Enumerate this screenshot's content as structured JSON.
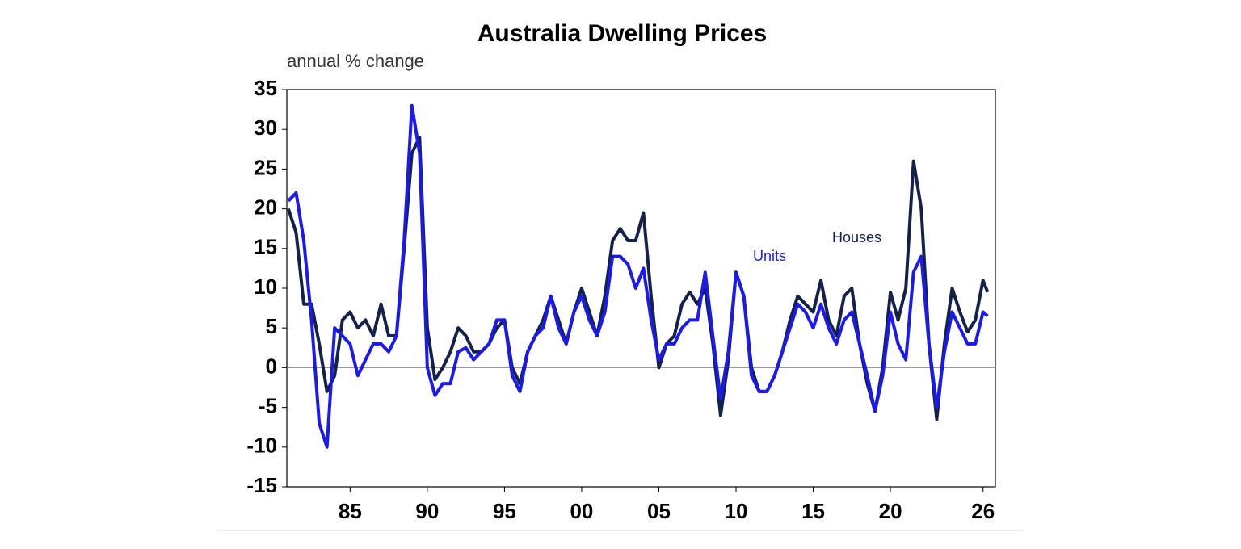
{
  "chart_data": {
    "type": "line",
    "title": "Australia Dwelling Prices",
    "y_label": "annual % change",
    "x": [
      1981,
      1981.5,
      1982,
      1982.5,
      1983,
      1983.5,
      1984,
      1984.5,
      1985,
      1985.5,
      1986,
      1986.5,
      1987,
      1987.5,
      1988,
      1988.5,
      1989,
      1989.5,
      1990,
      1990.5,
      1991,
      1991.5,
      1992,
      1992.5,
      1993,
      1993.5,
      1994,
      1994.5,
      1995,
      1995.5,
      1996,
      1996.5,
      1997,
      1997.5,
      1998,
      1998.5,
      1999,
      1999.5,
      2000,
      2000.5,
      2001,
      2001.5,
      2002,
      2002.5,
      2003,
      2003.5,
      2004,
      2004.5,
      2005,
      2005.5,
      2006,
      2006.5,
      2007,
      2007.5,
      2008,
      2008.5,
      2009,
      2009.5,
      2010,
      2010.5,
      2011,
      2011.5,
      2012,
      2012.5,
      2013,
      2013.5,
      2014,
      2014.5,
      2015,
      2015.5,
      2016,
      2016.5,
      2017,
      2017.5,
      2018,
      2018.5,
      2019,
      2019.5,
      2020,
      2020.5,
      2021,
      2021.5,
      2022,
      2022.5,
      2023,
      2023.5,
      2024,
      2024.5,
      2025,
      2025.5,
      2026,
      2026.3
    ],
    "series": [
      {
        "name": "Houses",
        "color": "#14214a",
        "values": [
          20,
          17,
          8,
          8,
          3,
          -3,
          -1,
          6,
          7,
          5,
          6,
          4,
          8,
          4,
          4,
          15,
          27,
          29,
          5,
          -1.5,
          0,
          2,
          5,
          4,
          2,
          2,
          3,
          5,
          6,
          0,
          -2,
          2,
          4,
          6,
          9,
          6,
          3,
          7,
          10,
          7,
          4,
          9,
          16,
          17.5,
          16,
          16,
          19.5,
          9,
          0,
          3,
          4,
          8,
          9.5,
          8,
          10,
          3,
          -6,
          1,
          12,
          9,
          0,
          -3,
          -3,
          -1,
          2,
          6,
          9,
          8,
          7,
          11,
          6,
          4,
          9,
          10,
          3,
          -2,
          -5.5,
          0,
          9.5,
          6,
          10,
          26,
          20,
          3,
          -6.5,
          3,
          10,
          7,
          4.5,
          6,
          11,
          9.5
        ]
      },
      {
        "name": "Units",
        "color": "#1a1aee",
        "values": [
          21,
          22,
          16,
          6,
          -7,
          -10,
          5,
          4,
          3,
          -1,
          1,
          3,
          3,
          2,
          4,
          16,
          33,
          27,
          0,
          -3.5,
          -2,
          -2,
          2,
          2.5,
          1,
          2,
          3,
          6,
          6,
          -1,
          -3,
          2,
          4,
          5,
          9,
          5,
          3,
          7,
          9,
          6,
          4,
          7,
          14,
          14,
          13,
          10,
          12.5,
          6,
          1,
          3,
          3,
          5,
          6,
          6,
          12,
          4,
          -4,
          2,
          12,
          9,
          -1,
          -3,
          -3,
          -1,
          2,
          5,
          8,
          7,
          5,
          8,
          5,
          3,
          6,
          7,
          3,
          -1,
          -5.5,
          -1,
          7,
          3,
          1,
          12,
          14,
          3,
          -5,
          2,
          7,
          5,
          3,
          3,
          7,
          6.5
        ]
      }
    ],
    "xlim": [
      1980.9,
      2026.8
    ],
    "xticks": [
      {
        "value": 1985,
        "label": "85"
      },
      {
        "value": 1990,
        "label": "90"
      },
      {
        "value": 1995,
        "label": "95"
      },
      {
        "value": 2000,
        "label": "00"
      },
      {
        "value": 2005,
        "label": "05"
      },
      {
        "value": 2010,
        "label": "10"
      },
      {
        "value": 2015,
        "label": "15"
      },
      {
        "value": 2020,
        "label": "20"
      },
      {
        "value": 2026,
        "label": "26"
      }
    ],
    "ylim": [
      -15,
      35
    ],
    "yticks": [
      -15,
      -10,
      -5,
      0,
      5,
      10,
      15,
      20,
      25,
      30,
      35
    ],
    "grid": false
  }
}
